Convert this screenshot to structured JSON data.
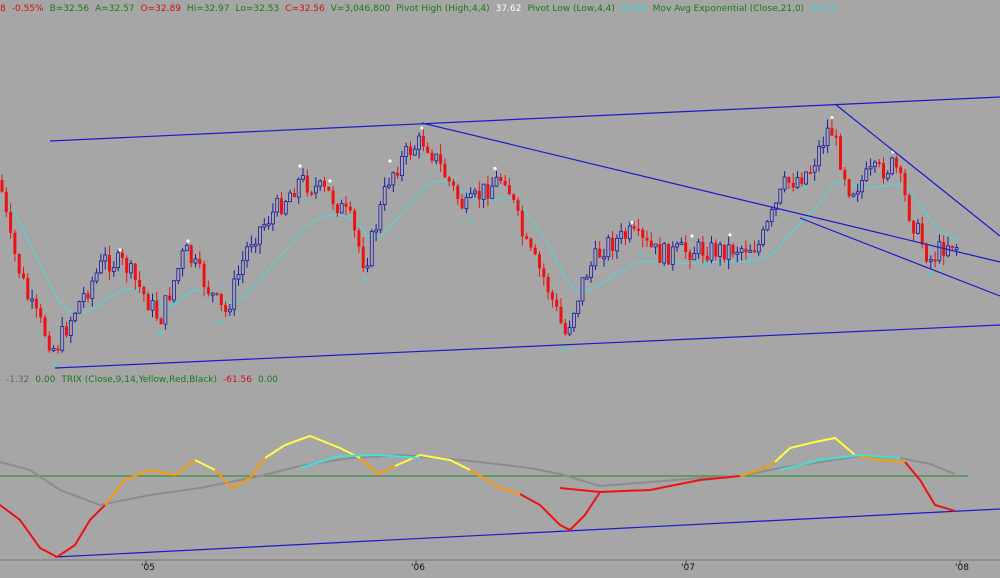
{
  "price_legend": [
    {
      "text": "8",
      "color": "#d01010"
    },
    {
      "text": "-0.55%",
      "color": "#d01010"
    },
    {
      "text": "B=32.56",
      "color": "#1a7a1a"
    },
    {
      "text": "A=32.57",
      "color": "#1a7a1a"
    },
    {
      "text": "O=32.89",
      "color": "#d01010"
    },
    {
      "text": "Hi=32.97",
      "color": "#1a7a1a"
    },
    {
      "text": "Lo=32.53",
      "color": "#1a7a1a"
    },
    {
      "text": "C=32.56",
      "color": "#d01010"
    },
    {
      "text": "V=3,046,800",
      "color": "#1a7a1a"
    },
    {
      "text": "Pivot High (High,4,4)",
      "color": "#1a7a1a"
    },
    {
      "text": "37.62",
      "color": "#ffffff"
    },
    {
      "text": "Pivot Low (Low,4,4)",
      "color": "#1a7a1a"
    },
    {
      "text": "33.65",
      "color": "#33dddd"
    },
    {
      "text": "Mov Avg Exponential (Close,21,0)",
      "color": "#1a7a1a"
    },
    {
      "text": "34.14",
      "color": "#33dddd"
    }
  ],
  "indicator_legend": [
    {
      "text": "-1.32",
      "color": "#666666"
    },
    {
      "text": "0.00",
      "color": "#1a7a1a"
    },
    {
      "text": "TRIX (Close,9,14,Yellow,Red,Black)",
      "color": "#1a7a1a"
    },
    {
      "text": "-61.56",
      "color": "#d01010"
    },
    {
      "text": "0.00",
      "color": "#1a7a1a"
    }
  ],
  "x_ticks": [
    {
      "label": "'05"
    },
    {
      "label": "'06"
    },
    {
      "label": "'07"
    },
    {
      "label": "'08"
    }
  ],
  "chart_data": [
    {
      "type": "candlestick",
      "title": "",
      "series": [
        {
          "name": "Pivot High (High,4,4)",
          "last": 37.62,
          "color": "#ffffff"
        },
        {
          "name": "Pivot Low (Low,4,4)",
          "last": 33.65,
          "color": "#33dddd"
        },
        {
          "name": "Mov Avg Exponential (Close,21,0)",
          "last": 34.14,
          "color": "#33dddd"
        }
      ],
      "last_bar": {
        "open": 32.89,
        "high": 32.97,
        "low": 32.53,
        "close": 32.56,
        "bid": 32.56,
        "ask": 32.57,
        "volume": 3046800,
        "change_pct": -0.55
      },
      "up_color": "#1a1aa0",
      "down_color": "#ee1111",
      "trendline_color": "#1a1acc"
    },
    {
      "type": "line",
      "title": "TRIX (Close,9,14,Yellow,Red,Black)",
      "series": [
        {
          "name": "TRIX",
          "value": -61.56
        },
        {
          "name": "Signal",
          "value": 0.0
        }
      ],
      "zero_line_color": "#1f8f1f",
      "trend_color": "#1a1acc",
      "colors": {
        "rising": "#ffff44",
        "falling": "#ee1111",
        "transition": "#ff9900",
        "signal": "#44dddd",
        "flat": "#8c8c8c"
      }
    }
  ]
}
